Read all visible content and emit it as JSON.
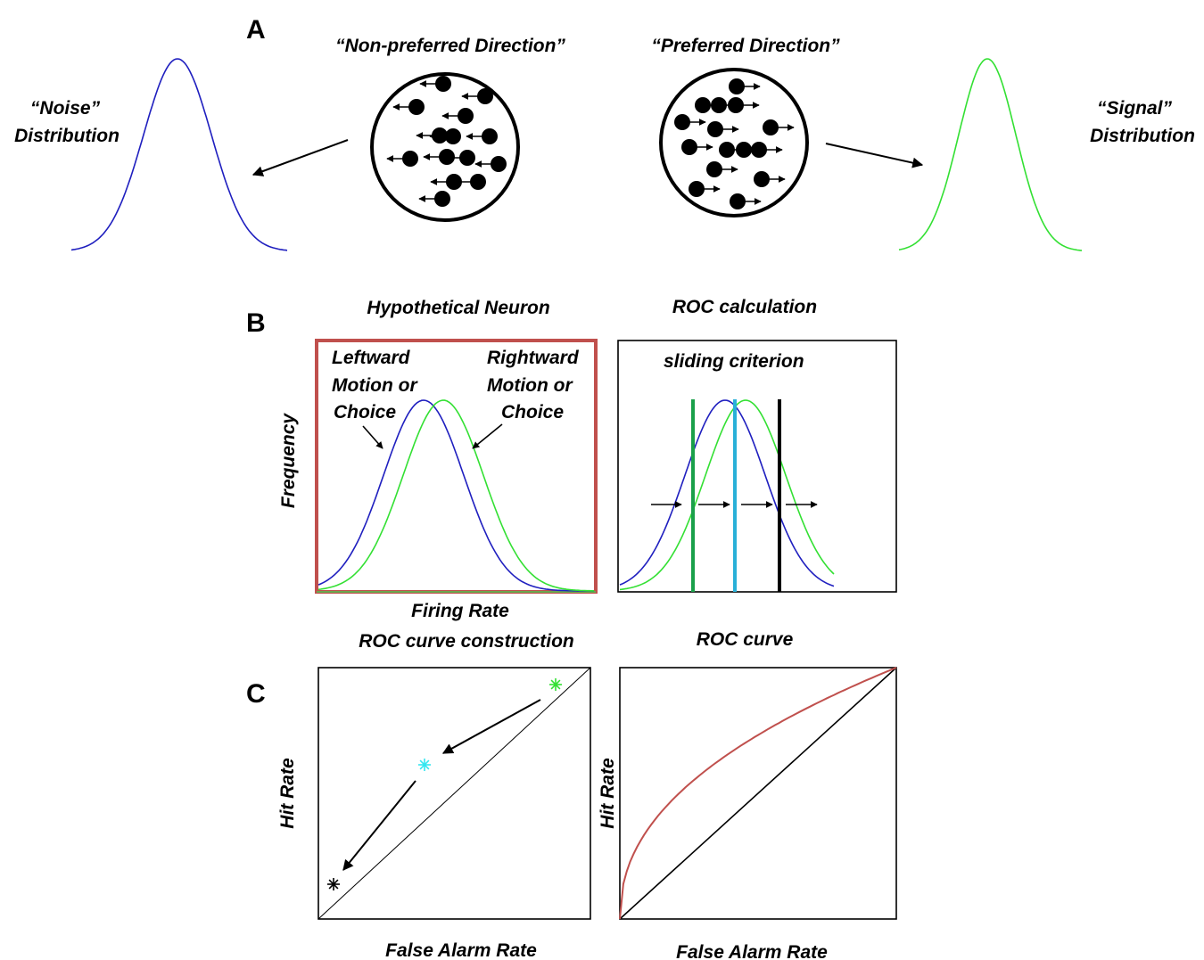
{
  "panels": {
    "a": {
      "letter": "A",
      "nonpreferred_title": "“Non-preferred Direction”",
      "preferred_title": "“Preferred Direction”",
      "noise_label_1": "“Noise”",
      "noise_label_2": "Distribution",
      "signal_label_1": "“Signal”",
      "signal_label_2": "Distribution",
      "noise_color": "#1f1fbf",
      "signal_color": "#33e033"
    },
    "b": {
      "letter": "B",
      "neuron_title": "Hypothetical Neuron",
      "roc_calc_title": "ROC calculation",
      "leftward_1": "Leftward",
      "leftward_2": "Motion or",
      "leftward_3": "Choice",
      "rightward_1": "Rightward",
      "rightward_2": "Motion or",
      "rightward_3": "Choice",
      "ylabel": "Frequency",
      "xlabel": "Firing Rate",
      "criterion_label": "sliding criterion",
      "frame_color": "#c0504d",
      "criterion_colors": [
        "#1aa04a",
        "#29b0d8",
        "#000000"
      ]
    },
    "c": {
      "letter": "C",
      "construction_title": "ROC curve construction",
      "curve_title": "ROC curve",
      "ylabel_left": "Hit Rate",
      "xlabel_left": "False Alarm Rate",
      "ylabel_right": "Hit Rate",
      "xlabel_right": "False Alarm Rate",
      "point_colors": [
        "#33e033",
        "#33e6f0",
        "#000000"
      ],
      "roc_color": "#c0504d"
    }
  }
}
